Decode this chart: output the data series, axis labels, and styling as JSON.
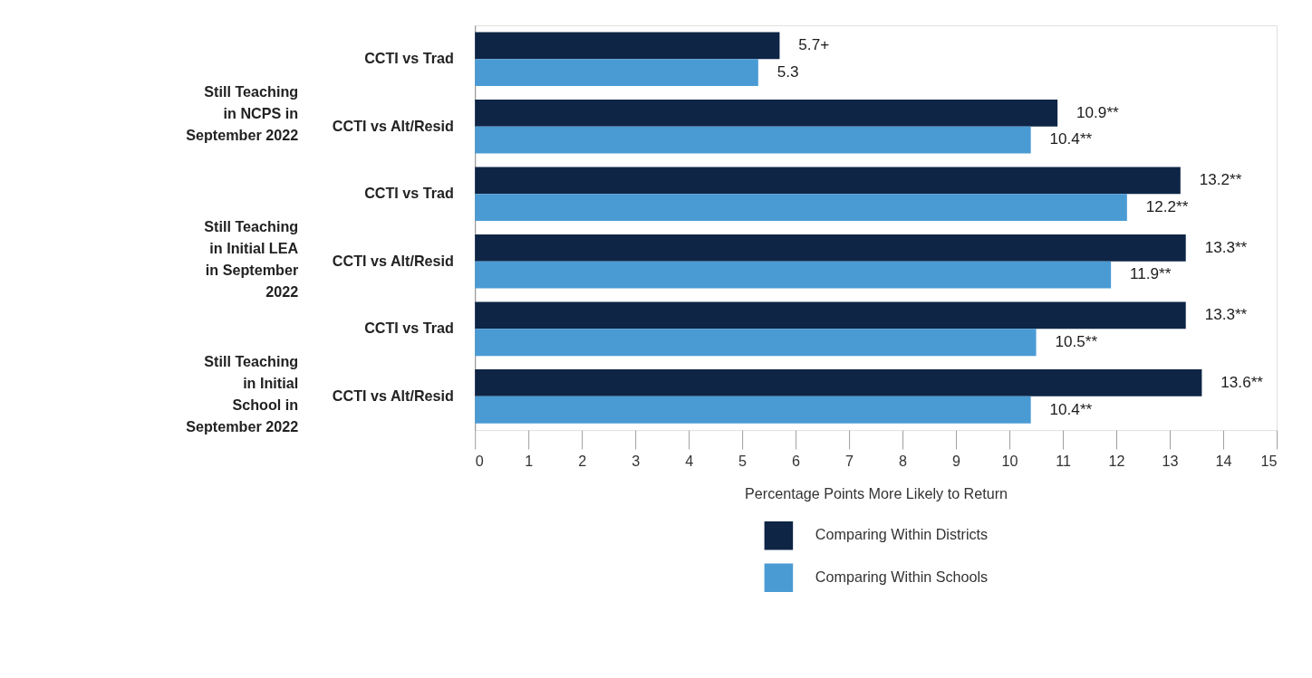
{
  "chart_data": {
    "type": "bar",
    "orientation": "horizontal",
    "categories": [
      "CCTI vs Trad",
      "CCTI vs Alt/Resid",
      "CCTI vs Trad",
      "CCTI vs Alt/Resid",
      "CCTI vs Trad",
      "CCTI vs Alt/Resid"
    ],
    "series": [
      {
        "name": "Comparing Within Districts",
        "color": "#0e2546",
        "values": [
          5.7,
          10.9,
          13.2,
          13.3,
          13.3,
          13.6
        ],
        "value_labels": [
          "5.7+",
          "10.9**",
          "13.2**",
          "13.3**",
          "13.3**",
          "13.6**"
        ]
      },
      {
        "name": "Comparing Within Schools",
        "color": "#4a9bd4",
        "values": [
          5.3,
          10.4,
          12.2,
          11.9,
          10.5,
          10.4
        ],
        "value_labels": [
          "5.3",
          "10.4**",
          "12.2**",
          "11.9**",
          "10.5**",
          "10.4**"
        ]
      }
    ],
    "annotations": [
      "Still Teaching in NCPS in September 2022",
      "Still Teaching in Initial LEA in September 2022",
      "Still Teaching in Initial School in September 2022"
    ],
    "xlabel": "Percentage Points More Likely to Return",
    "xlim": [
      0,
      15
    ],
    "xticks": [
      0,
      1,
      2,
      3,
      4,
      5,
      6,
      7,
      8,
      9,
      10,
      11,
      12,
      13,
      14,
      15
    ],
    "grid": false,
    "legend": "bottom"
  }
}
